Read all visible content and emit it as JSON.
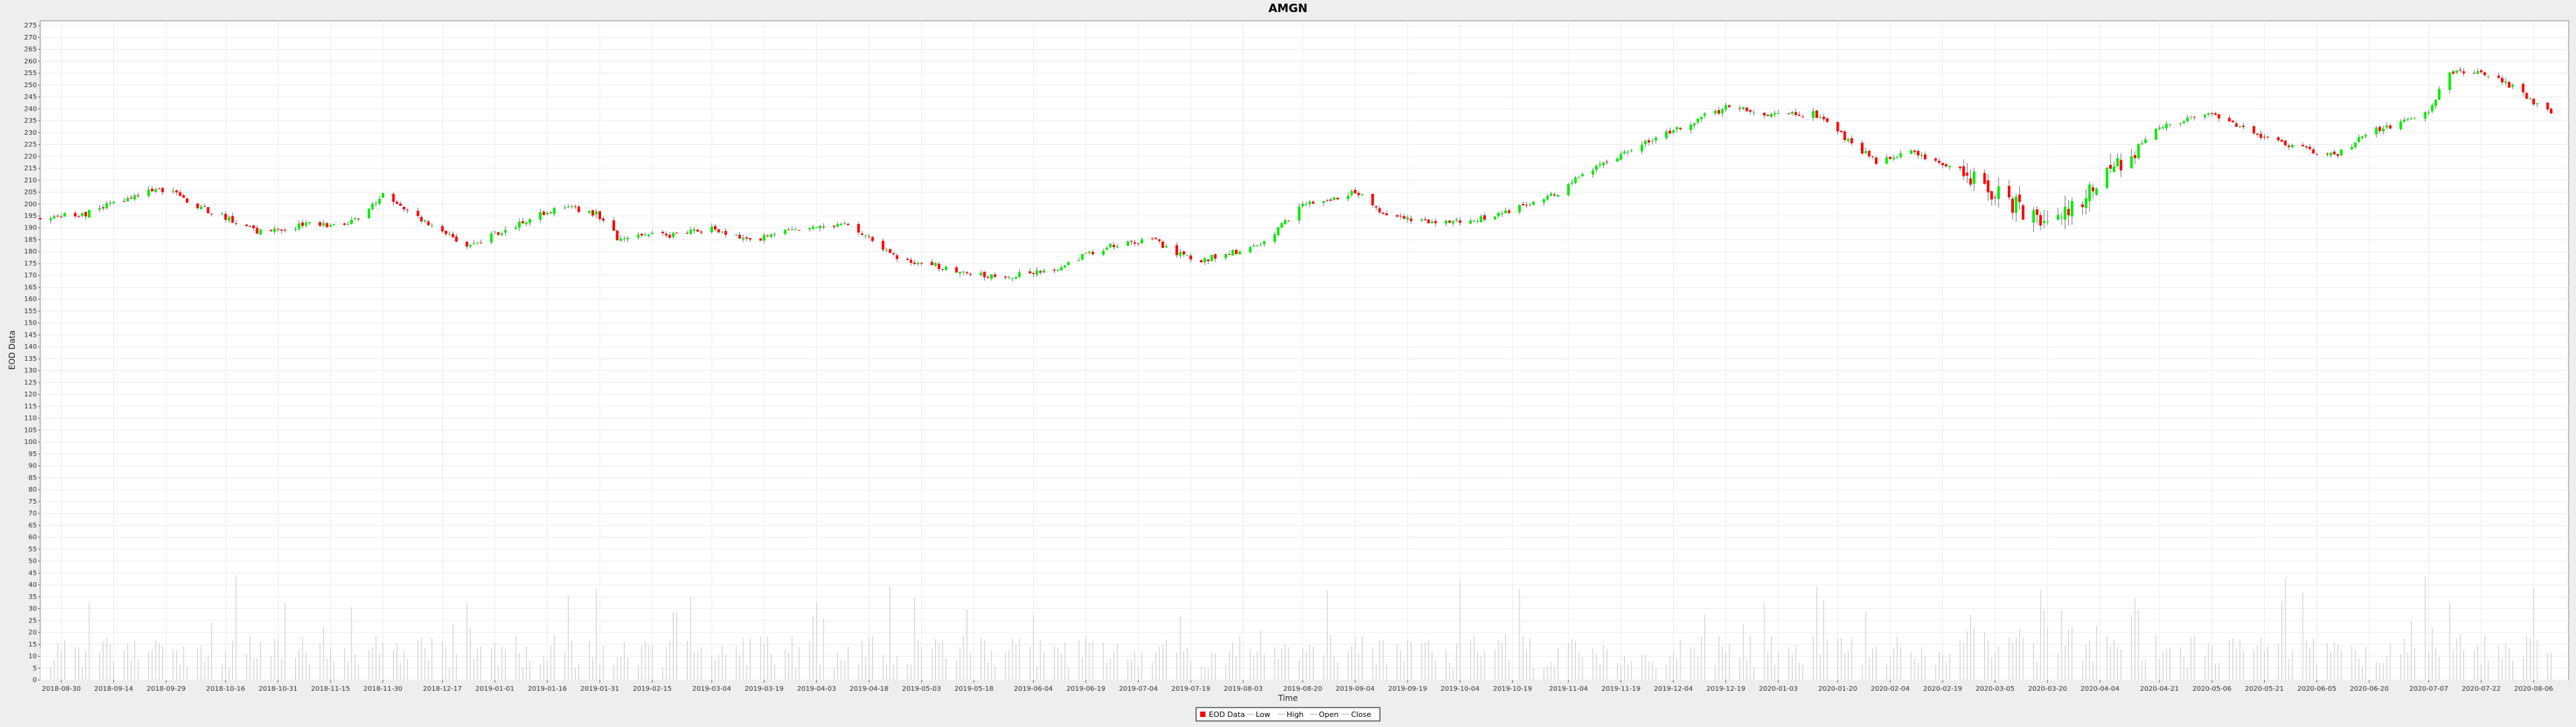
{
  "chart_data": {
    "type": "candlestick",
    "title": "AMGN",
    "xlabel": "Time",
    "ylabel": "EOD Data",
    "ylim": [
      0,
      277
    ],
    "y_tick_step": 5,
    "x_range": [
      "2018-08-24",
      "2020-08-16"
    ],
    "x_ticks": [
      "2018-08-30",
      "2018-09-14",
      "2018-09-29",
      "2018-10-16",
      "2018-10-31",
      "2018-11-15",
      "2018-11-30",
      "2018-12-17",
      "2019-01-01",
      "2019-01-16",
      "2019-01-31",
      "2019-02-15",
      "2019-03-04",
      "2019-03-19",
      "2019-04-03",
      "2019-04-18",
      "2019-05-03",
      "2019-05-18",
      "2019-06-04",
      "2019-06-19",
      "2019-07-04",
      "2019-07-19",
      "2019-08-03",
      "2019-08-20",
      "2019-09-04",
      "2019-09-19",
      "2019-10-04",
      "2019-10-19",
      "2019-11-04",
      "2019-11-19",
      "2019-12-04",
      "2019-12-19",
      "2020-01-03",
      "2020-01-20",
      "2020-02-04",
      "2020-02-19",
      "2020-03-05",
      "2020-03-20",
      "2020-04-04",
      "2020-04-21",
      "2020-05-06",
      "2020-05-21",
      "2020-06-05",
      "2020-06-20",
      "2020-07-07",
      "2020-07-22",
      "2020-08-06"
    ],
    "grid": true,
    "legend": {
      "position": "bottom-center",
      "items": [
        {
          "name": "EOD Data",
          "color": "#ff0000",
          "marker": "square"
        },
        {
          "name": "Low",
          "color": "#aaaaaa",
          "marker": "line"
        },
        {
          "name": "High",
          "color": "#aaaaaa",
          "marker": "line"
        },
        {
          "name": "Open",
          "color": "#aaaaaa",
          "marker": "line"
        },
        {
          "name": "Close",
          "color": "#aaaaaa",
          "marker": "line"
        }
      ]
    },
    "colors": {
      "up": "#00ee00",
      "down": "#ff0000",
      "wick": "#777777",
      "volume": "#c8c8c8"
    },
    "price_anchors": [
      [
        "2018-08-24",
        194
      ],
      [
        "2018-09-06",
        196
      ],
      [
        "2018-09-20",
        204
      ],
      [
        "2018-09-29",
        206
      ],
      [
        "2018-10-10",
        198
      ],
      [
        "2018-10-25",
        188
      ],
      [
        "2018-11-10",
        192
      ],
      [
        "2018-11-20",
        191
      ],
      [
        "2018-11-30",
        204
      ],
      [
        "2018-12-12",
        193
      ],
      [
        "2018-12-24",
        182
      ],
      [
        "2019-01-08",
        192
      ],
      [
        "2019-01-20",
        199
      ],
      [
        "2019-01-30",
        196
      ],
      [
        "2019-02-05",
        186
      ],
      [
        "2019-02-20",
        187
      ],
      [
        "2019-03-04",
        190
      ],
      [
        "2019-03-15",
        184
      ],
      [
        "2019-03-25",
        190
      ],
      [
        "2019-04-12",
        191
      ],
      [
        "2019-04-25",
        178
      ],
      [
        "2019-05-10",
        173
      ],
      [
        "2019-05-25",
        169
      ],
      [
        "2019-06-10",
        173
      ],
      [
        "2019-06-25",
        182
      ],
      [
        "2019-07-08",
        185
      ],
      [
        "2019-07-20",
        176
      ],
      [
        "2019-08-02",
        180
      ],
      [
        "2019-08-10",
        185
      ],
      [
        "2019-08-20",
        200
      ],
      [
        "2019-09-05",
        205
      ],
      [
        "2019-09-12",
        195
      ],
      [
        "2019-09-25",
        192
      ],
      [
        "2019-10-10",
        194
      ],
      [
        "2019-10-25",
        200
      ],
      [
        "2019-11-01",
        205
      ],
      [
        "2019-11-12",
        216
      ],
      [
        "2019-11-25",
        225
      ],
      [
        "2019-12-05",
        232
      ],
      [
        "2019-12-20",
        241
      ],
      [
        "2020-01-03",
        237
      ],
      [
        "2020-01-13",
        238
      ],
      [
        "2020-01-22",
        228
      ],
      [
        "2020-01-31",
        218
      ],
      [
        "2020-02-10",
        222
      ],
      [
        "2020-02-24",
        215
      ],
      [
        "2020-03-05",
        205
      ],
      [
        "2020-03-15",
        195
      ],
      [
        "2020-03-23",
        193
      ],
      [
        "2020-04-05",
        210
      ],
      [
        "2020-04-21",
        233
      ],
      [
        "2020-05-06",
        238
      ],
      [
        "2020-05-21",
        228
      ],
      [
        "2020-06-10",
        220
      ],
      [
        "2020-06-20",
        230
      ],
      [
        "2020-07-07",
        238
      ],
      [
        "2020-07-12",
        255
      ],
      [
        "2020-07-22",
        256
      ],
      [
        "2020-07-30",
        250
      ],
      [
        "2020-08-12",
        237
      ]
    ],
    "volume_range": [
      5,
      70
    ]
  }
}
